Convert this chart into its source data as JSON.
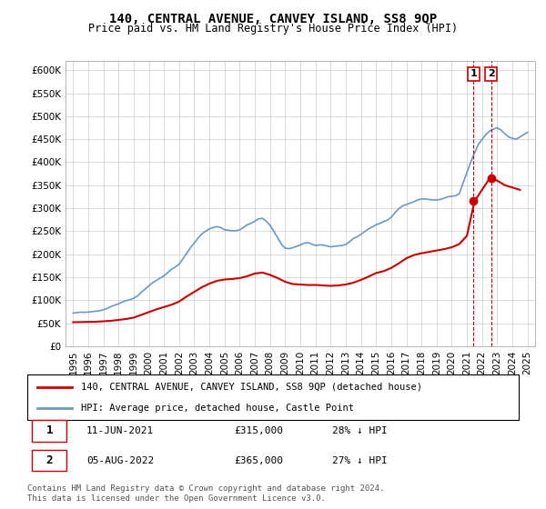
{
  "title": "140, CENTRAL AVENUE, CANVEY ISLAND, SS8 9QP",
  "subtitle": "Price paid vs. HM Land Registry's House Price Index (HPI)",
  "legend_line1": "140, CENTRAL AVENUE, CANVEY ISLAND, SS8 9QP (detached house)",
  "legend_line2": "HPI: Average price, detached house, Castle Point",
  "annotation1_label": "1",
  "annotation1_date": "11-JUN-2021",
  "annotation1_price": "£315,000",
  "annotation1_hpi": "28% ↓ HPI",
  "annotation2_label": "2",
  "annotation2_date": "05-AUG-2022",
  "annotation2_price": "£365,000",
  "annotation2_hpi": "27% ↓ HPI",
  "copyright": "Contains HM Land Registry data © Crown copyright and database right 2024.\nThis data is licensed under the Open Government Licence v3.0.",
  "hpi_color": "#6699cc",
  "price_color": "#cc0000",
  "annotation_color": "#cc0000",
  "vline_color": "#cc0000",
  "ylim": [
    0,
    620000
  ],
  "yticks": [
    0,
    50000,
    100000,
    150000,
    200000,
    250000,
    300000,
    350000,
    400000,
    450000,
    500000,
    550000,
    600000
  ],
  "ytick_labels": [
    "£0",
    "£50K",
    "£100K",
    "£150K",
    "£200K",
    "£250K",
    "£300K",
    "£350K",
    "£400K",
    "£450K",
    "£500K",
    "£550K",
    "£600K"
  ],
  "xlim_start": 1994.5,
  "xlim_end": 2025.5,
  "xticks": [
    1995,
    1996,
    1997,
    1998,
    1999,
    2000,
    2001,
    2002,
    2003,
    2004,
    2005,
    2006,
    2007,
    2008,
    2009,
    2010,
    2011,
    2012,
    2013,
    2014,
    2015,
    2016,
    2017,
    2018,
    2019,
    2020,
    2021,
    2022,
    2023,
    2024,
    2025
  ],
  "sale1_x": 2021.44,
  "sale1_y": 315000,
  "sale2_x": 2022.59,
  "sale2_y": 365000,
  "hpi_x": [
    1995.0,
    1995.25,
    1995.5,
    1995.75,
    1996.0,
    1996.25,
    1996.5,
    1996.75,
    1997.0,
    1997.25,
    1997.5,
    1997.75,
    1998.0,
    1998.25,
    1998.5,
    1998.75,
    1999.0,
    1999.25,
    1999.5,
    1999.75,
    2000.0,
    2000.25,
    2000.5,
    2000.75,
    2001.0,
    2001.25,
    2001.5,
    2001.75,
    2002.0,
    2002.25,
    2002.5,
    2002.75,
    2003.0,
    2003.25,
    2003.5,
    2003.75,
    2004.0,
    2004.25,
    2004.5,
    2004.75,
    2005.0,
    2005.25,
    2005.5,
    2005.75,
    2006.0,
    2006.25,
    2006.5,
    2006.75,
    2007.0,
    2007.25,
    2007.5,
    2007.75,
    2008.0,
    2008.25,
    2008.5,
    2008.75,
    2009.0,
    2009.25,
    2009.5,
    2009.75,
    2010.0,
    2010.25,
    2010.5,
    2010.75,
    2011.0,
    2011.25,
    2011.5,
    2011.75,
    2012.0,
    2012.25,
    2012.5,
    2012.75,
    2013.0,
    2013.25,
    2013.5,
    2013.75,
    2014.0,
    2014.25,
    2014.5,
    2014.75,
    2015.0,
    2015.25,
    2015.5,
    2015.75,
    2016.0,
    2016.25,
    2016.5,
    2016.75,
    2017.0,
    2017.25,
    2017.5,
    2017.75,
    2018.0,
    2018.25,
    2018.5,
    2018.75,
    2019.0,
    2019.25,
    2019.5,
    2019.75,
    2020.0,
    2020.25,
    2020.5,
    2020.75,
    2021.0,
    2021.25,
    2021.5,
    2021.75,
    2022.0,
    2022.25,
    2022.5,
    2022.75,
    2023.0,
    2023.25,
    2023.5,
    2023.75,
    2024.0,
    2024.25,
    2024.5,
    2024.75,
    2025.0
  ],
  "hpi_y": [
    72000,
    73000,
    74000,
    73500,
    74000,
    75000,
    76000,
    77000,
    79000,
    82000,
    86000,
    89000,
    92000,
    96000,
    99000,
    101000,
    104000,
    109000,
    117000,
    124000,
    131000,
    138000,
    143000,
    148000,
    153000,
    160000,
    167000,
    172000,
    178000,
    190000,
    202000,
    214000,
    224000,
    235000,
    244000,
    250000,
    255000,
    258000,
    260000,
    258000,
    253000,
    252000,
    251000,
    251000,
    253000,
    258000,
    264000,
    267000,
    272000,
    277000,
    278000,
    272000,
    263000,
    250000,
    236000,
    222000,
    213000,
    212000,
    214000,
    217000,
    220000,
    224000,
    225000,
    222000,
    219000,
    220000,
    220000,
    218000,
    216000,
    217000,
    218000,
    219000,
    221000,
    227000,
    234000,
    238000,
    243000,
    249000,
    255000,
    259000,
    264000,
    267000,
    271000,
    274000,
    280000,
    290000,
    299000,
    305000,
    308000,
    311000,
    314000,
    318000,
    320000,
    320000,
    319000,
    318000,
    318000,
    319000,
    322000,
    325000,
    326000,
    327000,
    332000,
    355000,
    378000,
    400000,
    420000,
    438000,
    450000,
    460000,
    468000,
    472000,
    475000,
    470000,
    462000,
    455000,
    452000,
    450000,
    455000,
    460000,
    465000
  ],
  "price_x": [
    1995.0,
    1996.5,
    1997.0,
    1997.5,
    1998.0,
    1998.5,
    1999.0,
    1999.5,
    2000.0,
    2000.5,
    2001.0,
    2001.5,
    2002.0,
    2002.5,
    2003.0,
    2003.5,
    2004.0,
    2004.5,
    2005.0,
    2005.5,
    2006.0,
    2006.5,
    2007.0,
    2007.5,
    2008.0,
    2008.5,
    2009.0,
    2009.5,
    2010.0,
    2010.5,
    2011.0,
    2011.5,
    2012.0,
    2012.5,
    2013.0,
    2013.5,
    2014.0,
    2014.5,
    2015.0,
    2015.5,
    2016.0,
    2016.5,
    2017.0,
    2017.5,
    2018.0,
    2018.5,
    2019.0,
    2019.5,
    2020.0,
    2020.5,
    2021.0,
    2021.5,
    2022.0,
    2022.5,
    2023.0,
    2023.5,
    2024.0,
    2024.5
  ],
  "price_y": [
    52000,
    53000,
    54000,
    55000,
    57000,
    59000,
    62000,
    68000,
    74000,
    80000,
    85000,
    90000,
    97000,
    108000,
    118000,
    128000,
    136000,
    142000,
    145000,
    146000,
    148000,
    152000,
    158000,
    160000,
    155000,
    148000,
    140000,
    135000,
    134000,
    133000,
    133000,
    132000,
    131000,
    132000,
    134000,
    138000,
    144000,
    151000,
    159000,
    163000,
    170000,
    180000,
    191000,
    198000,
    202000,
    205000,
    208000,
    211000,
    215000,
    222000,
    240000,
    315000,
    340000,
    365000,
    360000,
    350000,
    345000,
    340000
  ]
}
